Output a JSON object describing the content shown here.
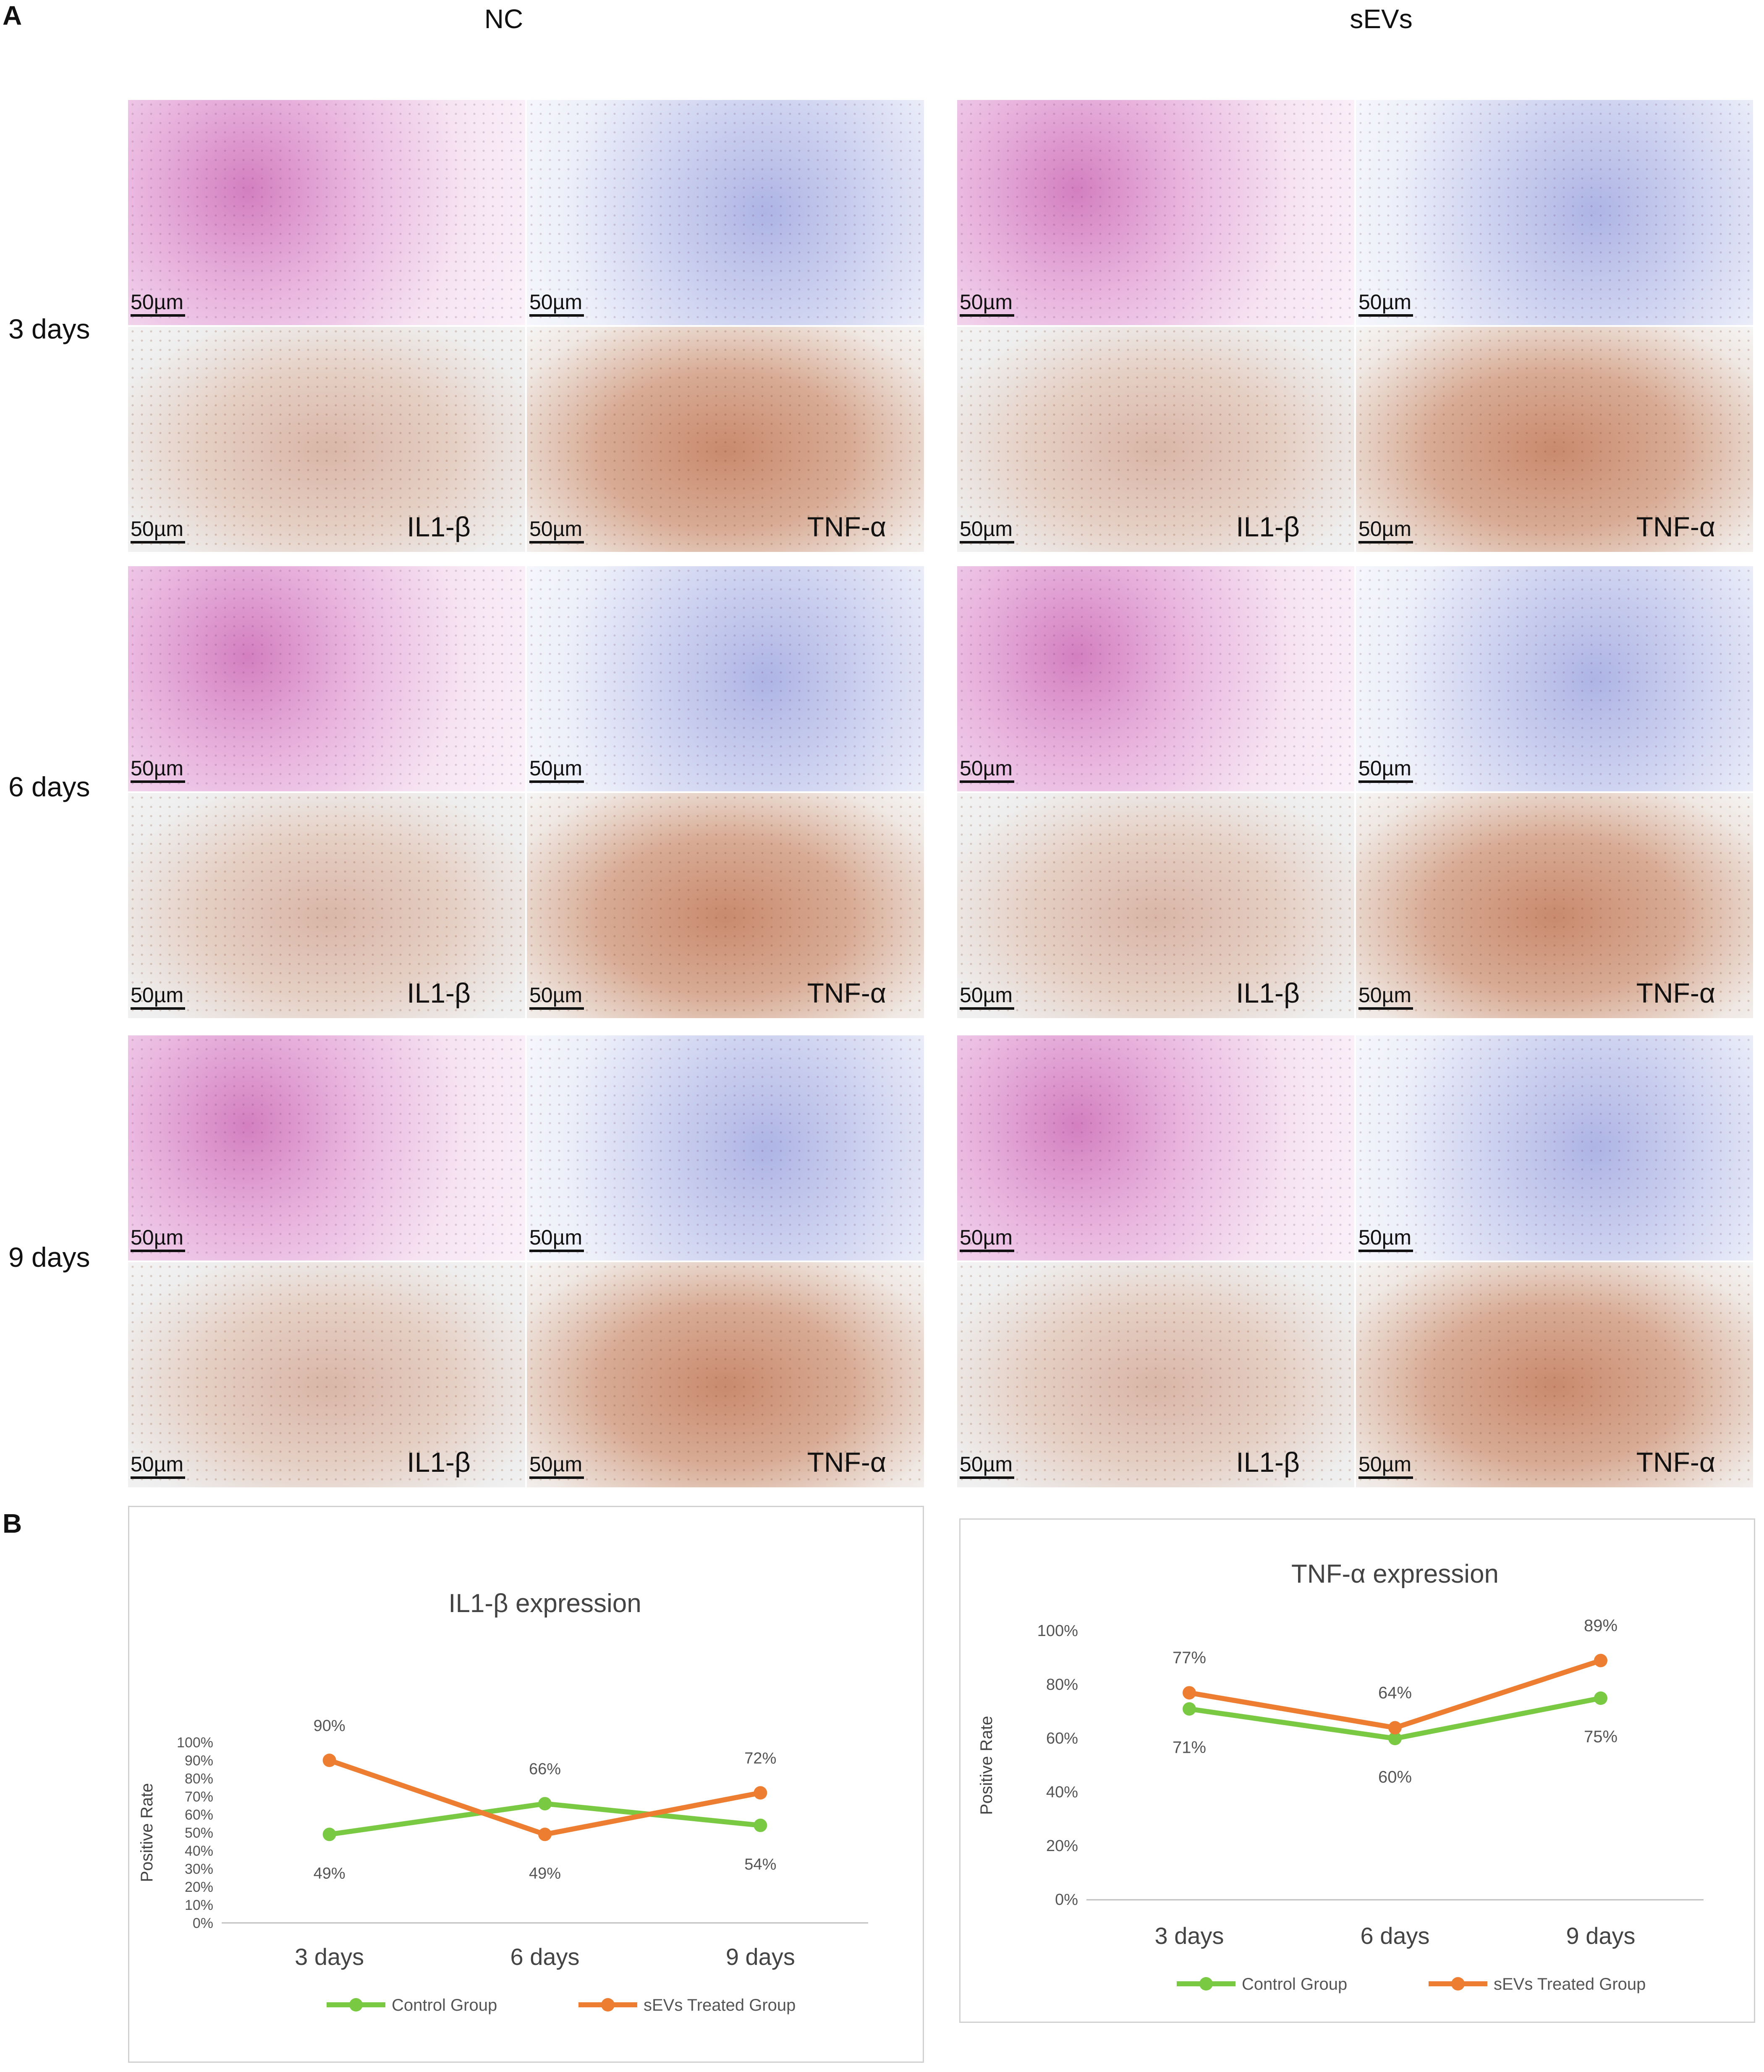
{
  "panel_a_label": "A",
  "panel_b_label": "B",
  "columns": [
    "NC",
    "sEVs"
  ],
  "rows": [
    "3 days",
    "6 days",
    "9 days"
  ],
  "scale_bar": "50µm",
  "markers": {
    "il": "IL1-β",
    "tnf": "TNF-α"
  },
  "chart_data": [
    {
      "type": "line",
      "title": "IL1-β expression",
      "ylabel": "Positive Rate",
      "categories": [
        "3 days",
        "6 days",
        "9 days"
      ],
      "yticks": [
        "0%",
        "10%",
        "20%",
        "30%",
        "40%",
        "50%",
        "60%",
        "70%",
        "80%",
        "90%",
        "100%"
      ],
      "ylim": [
        0,
        100
      ],
      "grid": false,
      "legend_position": "bottom",
      "series": [
        {
          "name": "Control Group",
          "color": "#7ac943",
          "values": [
            49,
            66,
            54
          ],
          "labels": [
            "49%",
            "66%",
            "54%"
          ]
        },
        {
          "name": "sEVs Treated Group",
          "color": "#ed7d31",
          "values": [
            90,
            49,
            72
          ],
          "labels": [
            "90%",
            "49%",
            "72%"
          ]
        }
      ]
    },
    {
      "type": "line",
      "title": "TNF-α expression",
      "ylabel": "Positive Rate",
      "categories": [
        "3 days",
        "6 days",
        "9 days"
      ],
      "yticks": [
        "0%",
        "20%",
        "40%",
        "60%",
        "80%",
        "100%"
      ],
      "ylim": [
        0,
        100
      ],
      "grid": false,
      "legend_position": "bottom",
      "series": [
        {
          "name": "Control Group",
          "color": "#7ac943",
          "values": [
            71,
            60,
            75
          ],
          "labels": [
            "71%",
            "60%",
            "75%"
          ]
        },
        {
          "name": "sEVs Treated Group",
          "color": "#ed7d31",
          "values": [
            77,
            64,
            89
          ],
          "labels": [
            "77%",
            "64%",
            "89%"
          ]
        }
      ]
    }
  ]
}
